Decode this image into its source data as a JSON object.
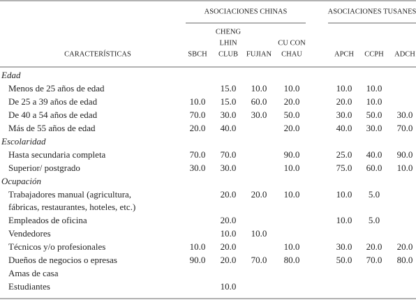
{
  "table": {
    "groups": [
      {
        "label": "ASOCIACIONES CHINAS"
      },
      {
        "label": "ASOCIACIONES TUSANES"
      }
    ],
    "columns": [
      {
        "label": [
          "CARACTERÍSTICAS"
        ]
      },
      {
        "label": [
          "SBCH"
        ]
      },
      {
        "label": [
          "CHENG",
          "LHIN",
          "CLUB"
        ]
      },
      {
        "label": [
          "FUJIAN"
        ]
      },
      {
        "label": [
          "CU CON",
          "CHAU"
        ]
      },
      {
        "label": [
          "APCH"
        ]
      },
      {
        "label": [
          "CCPH"
        ]
      },
      {
        "label": [
          "ADCH"
        ]
      }
    ],
    "sections": [
      {
        "title": "Edad",
        "rows": [
          {
            "label": [
              "Menos de 25 años de edad"
            ],
            "cells": [
              null,
              "15.0",
              "10.0",
              "10.0",
              "10.0",
              "10.0",
              null
            ]
          },
          {
            "label": [
              "De 25 a 39 años de edad"
            ],
            "cells": [
              "10.0",
              "15.0",
              "60.0",
              "20.0",
              "20.0",
              "10.0",
              null
            ]
          },
          {
            "label": [
              "De 40 a 54 años de edad"
            ],
            "cells": [
              "70.0",
              "30.0",
              "30.0",
              "50.0",
              "30.0",
              "50.0",
              "30.0"
            ]
          },
          {
            "label": [
              "Más de 55 años de edad"
            ],
            "cells": [
              "20.0",
              "40.0",
              null,
              "20.0",
              "40.0",
              "30.0",
              "70.0"
            ]
          }
        ]
      },
      {
        "title": "Escolaridad",
        "rows": [
          {
            "label": [
              "Hasta secundaria completa"
            ],
            "cells": [
              "70.0",
              "70.0",
              null,
              "90.0",
              "25.0",
              "40.0",
              "90.0"
            ]
          },
          {
            "label": [
              "Superior/ postgrado"
            ],
            "cells": [
              "30.0",
              "30.0",
              null,
              "10.0",
              "75.0",
              "60.0",
              "10.0"
            ]
          }
        ]
      },
      {
        "title": "Ocupación",
        "rows": [
          {
            "label": [
              "Trabajadores manual (agricultura,",
              "fábricas, restaurantes, hoteles, etc.)"
            ],
            "cells": [
              null,
              "20.0",
              "20.0",
              "10.0",
              "10.0",
              "5.0",
              null
            ]
          },
          {
            "label": [
              "Empleados de oficina"
            ],
            "cells": [
              null,
              "20.0",
              null,
              null,
              "10.0",
              "5.0",
              null
            ]
          },
          {
            "label": [
              "Vendedores"
            ],
            "cells": [
              null,
              "10.0",
              "10.0",
              null,
              null,
              null,
              null
            ]
          },
          {
            "label": [
              "Técnicos y/o profesionales"
            ],
            "cells": [
              "10.0",
              "20.0",
              null,
              "10.0",
              "30.0",
              "20.0",
              "20.0"
            ]
          },
          {
            "label": [
              "Dueños de negocios o epresas"
            ],
            "cells": [
              "90.0",
              "20.0",
              "70.0",
              "80.0",
              "50.0",
              "70.0",
              "80.0"
            ]
          },
          {
            "label": [
              "Amas de casa"
            ],
            "cells": [
              null,
              null,
              null,
              null,
              null,
              null,
              null
            ]
          },
          {
            "label": [
              "Estudiantes"
            ],
            "cells": [
              null,
              "10.0",
              null,
              null,
              null,
              null,
              null
            ]
          }
        ]
      }
    ]
  }
}
